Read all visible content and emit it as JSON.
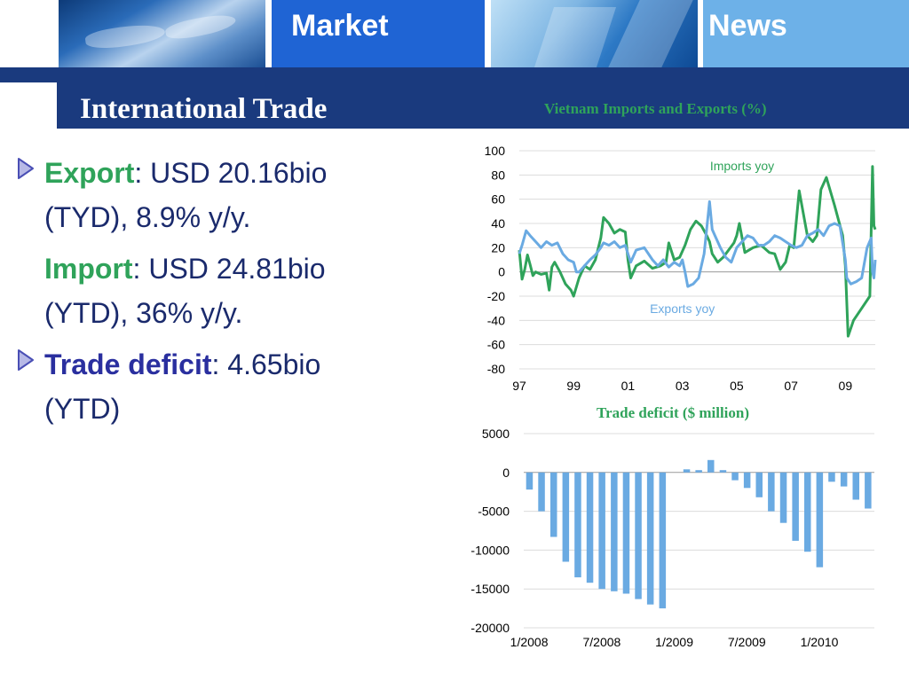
{
  "header": {
    "tile_market": "Market",
    "tile_news": "News",
    "page_title": "International Trade"
  },
  "colors": {
    "navy": "#1a3a7e",
    "market_blue": "#1f64d4",
    "news_blue": "#6db1e8",
    "green": "#2fa35a",
    "light_blue": "#6aaae2",
    "text_navy": "#1a2a6c",
    "deficit_blue": "#2a2f9f"
  },
  "bullets": {
    "export_kw": "Export",
    "export_val": ":   USD  20.16bio",
    "export_line2": "(TYD), 8.9% y/y.",
    "import_kw": "Import",
    "import_val": ":   USD   24.81bio",
    "import_line2": "(YTD), 36% y/y.",
    "deficit_kw": "Trade deficit",
    "deficit_val": ": 4.65bio",
    "deficit_line2": "(YTD)"
  },
  "chart_data": [
    {
      "type": "line",
      "title": "Vietnam Imports and Exports (%)",
      "xlabel": "",
      "ylabel": "",
      "ylim": [
        -80,
        100
      ],
      "yticks": [
        -80,
        -60,
        -40,
        -20,
        0,
        20,
        40,
        60,
        80,
        100
      ],
      "xlim": [
        1997,
        2010.1
      ],
      "xtick_values": [
        1997,
        1999,
        2001,
        2003,
        2005,
        2007,
        2009
      ],
      "xtick_labels": [
        "97",
        "99",
        "01",
        "03",
        "05",
        "07",
        "09"
      ],
      "grid": true,
      "annotations": [
        "Imports yoy",
        "Exports yoy"
      ],
      "series": [
        {
          "name": "Imports yoy",
          "color": "#2fa35a",
          "x": [
            1997.0,
            1997.1,
            1997.2,
            1997.3,
            1997.4,
            1997.5,
            1997.6,
            1997.8,
            1998.0,
            1998.1,
            1998.2,
            1998.3,
            1998.5,
            1998.7,
            1998.9,
            1999.0,
            1999.2,
            1999.4,
            1999.6,
            1999.8,
            2000.0,
            2000.1,
            2000.3,
            2000.5,
            2000.7,
            2000.9,
            2001.0,
            2001.1,
            2001.3,
            2001.6,
            2001.9,
            2002.2,
            2002.4,
            2002.5,
            2002.7,
            2002.9,
            2003.1,
            2003.3,
            2003.5,
            2003.7,
            2003.9,
            2004.0,
            2004.1,
            2004.3,
            2004.5,
            2004.7,
            2004.9,
            2005.0,
            2005.1,
            2005.3,
            2005.6,
            2005.9,
            2006.2,
            2006.4,
            2006.6,
            2006.8,
            2006.95,
            2007.1,
            2007.3,
            2007.6,
            2007.8,
            2007.95,
            2008.1,
            2008.3,
            2008.6,
            2008.9,
            2009.0,
            2009.1,
            2009.3,
            2009.6,
            2009.9,
            2010.0,
            2010.05,
            2010.1
          ],
          "y": [
            18,
            -6,
            2,
            14,
            6,
            -3,
            0,
            -2,
            -1,
            -15,
            4,
            8,
            0,
            -10,
            -15,
            -20,
            -5,
            5,
            2,
            10,
            28,
            45,
            40,
            32,
            35,
            33,
            10,
            -5,
            5,
            9,
            3,
            5,
            8,
            24,
            10,
            12,
            22,
            35,
            42,
            38,
            30,
            25,
            15,
            8,
            12,
            18,
            24,
            30,
            40,
            16,
            20,
            22,
            16,
            15,
            2,
            8,
            22,
            20,
            67,
            30,
            25,
            30,
            68,
            78,
            55,
            30,
            5,
            -53,
            -40,
            -30,
            -20,
            87,
            38,
            35
          ]
        },
        {
          "name": "Exports yoy",
          "color": "#6aaae2",
          "x": [
            1997.0,
            1997.1,
            1997.25,
            1997.4,
            1997.6,
            1997.8,
            1998.0,
            1998.2,
            1998.4,
            1998.6,
            1998.8,
            1999.0,
            1999.1,
            1999.2,
            1999.4,
            1999.6,
            1999.8,
            2000.0,
            2000.1,
            2000.3,
            2000.5,
            2000.7,
            2000.9,
            2001.0,
            2001.1,
            2001.3,
            2001.6,
            2001.9,
            2002.1,
            2002.3,
            2002.5,
            2002.7,
            2002.9,
            2003.0,
            2003.1,
            2003.2,
            2003.4,
            2003.6,
            2003.8,
            2004.0,
            2004.1,
            2004.2,
            2004.4,
            2004.6,
            2004.8,
            2005.0,
            2005.2,
            2005.4,
            2005.6,
            2005.8,
            2006.0,
            2006.2,
            2006.4,
            2006.6,
            2006.8,
            2007.0,
            2007.2,
            2007.4,
            2007.6,
            2007.8,
            2008.0,
            2008.2,
            2008.4,
            2008.6,
            2008.8,
            2009.0,
            2009.05,
            2009.2,
            2009.4,
            2009.6,
            2009.8,
            2009.95,
            2010.0,
            2010.05,
            2010.1
          ],
          "y": [
            15,
            22,
            34,
            30,
            25,
            20,
            25,
            22,
            24,
            15,
            10,
            8,
            0,
            0,
            5,
            10,
            14,
            20,
            24,
            22,
            25,
            20,
            22,
            15,
            8,
            18,
            20,
            10,
            5,
            10,
            4,
            8,
            5,
            10,
            0,
            -12,
            -10,
            -5,
            15,
            58,
            35,
            30,
            20,
            12,
            8,
            20,
            25,
            30,
            28,
            22,
            22,
            25,
            30,
            28,
            25,
            22,
            20,
            22,
            30,
            32,
            35,
            30,
            38,
            40,
            38,
            10,
            -5,
            -10,
            -8,
            -5,
            20,
            28,
            0,
            -5,
            10
          ]
        }
      ]
    },
    {
      "type": "bar",
      "title": "Trade deficit ($ million)",
      "xlabel": "",
      "ylabel": "",
      "ylim": [
        -20000,
        5000
      ],
      "yticks": [
        -20000,
        -15000,
        -10000,
        -5000,
        0,
        5000
      ],
      "xtick_labels": [
        "1/2008",
        "7/2008",
        "1/2009",
        "7/2009",
        "1/2010"
      ],
      "xtick_positions": [
        0,
        6,
        12,
        18,
        24
      ],
      "grid": true,
      "color": "#6aaae2",
      "categories": [
        "1/2008",
        "2/2008",
        "3/2008",
        "4/2008",
        "5/2008",
        "6/2008",
        "7/2008",
        "8/2008",
        "9/2008",
        "10/2008",
        "11/2008",
        "12/2008",
        "1/2009",
        "2/2009",
        "3/2009",
        "4/2009",
        "5/2009",
        "6/2009",
        "7/2009",
        "8/2009",
        "9/2009",
        "10/2009",
        "11/2009",
        "12/2009",
        "1/2010",
        "2/2010",
        "3/2010",
        "4/2010",
        "5/2010"
      ],
      "values": [
        -2200,
        -5000,
        -8300,
        -11500,
        -13500,
        -14200,
        -15000,
        -15300,
        -15600,
        -16300,
        -17000,
        -17500,
        null,
        400,
        300,
        1600,
        300,
        -1000,
        -2000,
        -3200,
        -5000,
        -6500,
        -8800,
        -10200,
        -12200,
        -1200,
        -1800,
        -3500,
        -4650
      ]
    }
  ]
}
